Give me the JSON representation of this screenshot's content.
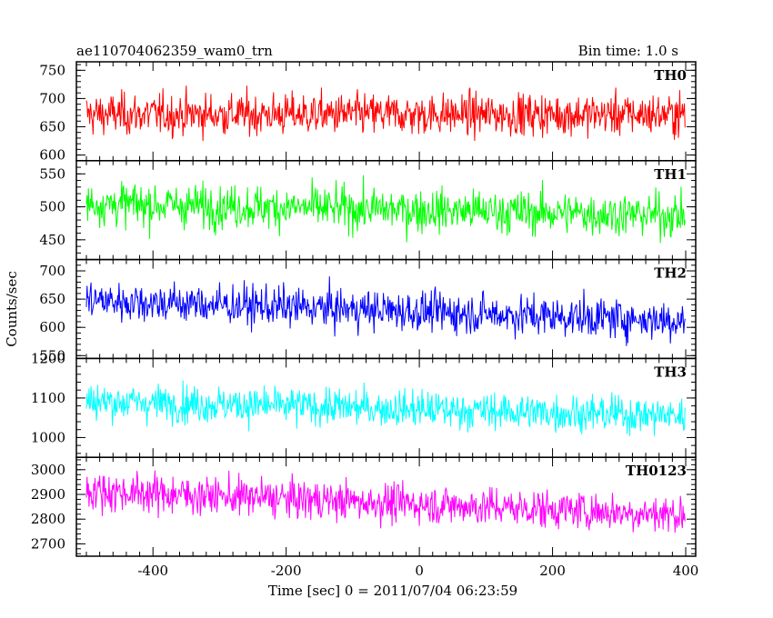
{
  "header": {
    "title": "ae110704062359_wam0_trn",
    "bin_time": "Bin time: 1.0 s"
  },
  "chart_data": {
    "type": "line",
    "xlabel": "Time [sec] 0 = 2011/07/04 06:23:59",
    "ylabel": "Counts/sec",
    "xlim": [
      -515,
      415
    ],
    "xticks": [
      -400,
      -200,
      0,
      200,
      400
    ],
    "x": {
      "start": -500,
      "end": 399,
      "step": 1
    },
    "panels": [
      {
        "name": "TH0",
        "color": "#ff0000",
        "ylim": [
          590,
          765
        ],
        "yticks": [
          600,
          650,
          700,
          750
        ],
        "values": {
          "mean_start": 672,
          "mean_end": 672,
          "spread": 26,
          "min": 590,
          "max": 765
        }
      },
      {
        "name": "TH1",
        "color": "#00ff00",
        "ylim": [
          420,
          570
        ],
        "yticks": [
          450,
          500,
          550
        ],
        "values": {
          "mean_start": 505,
          "mean_end": 487,
          "spread": 23,
          "min": 420,
          "max": 570
        }
      },
      {
        "name": "TH2",
        "color": "#0000ff",
        "ylim": [
          545,
          720
        ],
        "yticks": [
          550,
          600,
          650,
          700
        ],
        "values": {
          "mean_start": 648,
          "mean_end": 612,
          "spread": 25,
          "min": 545,
          "max": 720
        }
      },
      {
        "name": "TH3",
        "color": "#00ffff",
        "ylim": [
          950,
          1200
        ],
        "yticks": [
          1000,
          1100,
          1200
        ],
        "values": {
          "mean_start": 1092,
          "mean_end": 1055,
          "spread": 33,
          "min": 950,
          "max": 1200
        }
      },
      {
        "name": "TH0123",
        "color": "#ff00ff",
        "ylim": [
          2650,
          3050
        ],
        "yticks": [
          2700,
          2800,
          2900,
          3000
        ],
        "values": {
          "mean_start": 2915,
          "mean_end": 2818,
          "spread": 55,
          "min": 2650,
          "max": 3050
        }
      }
    ]
  }
}
